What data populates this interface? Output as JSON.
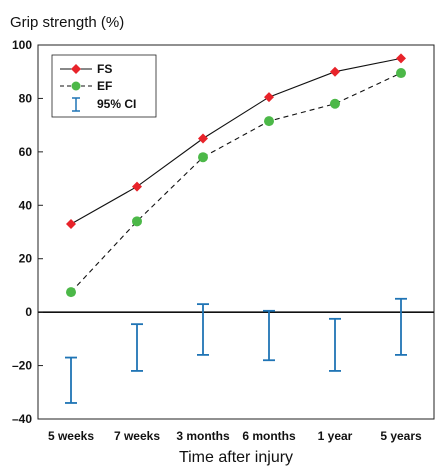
{
  "chart_data": {
    "type": "line",
    "title": "Grip strength (%)",
    "xlabel": "Time after injury",
    "ylabel": "",
    "categories": [
      "5 weeks",
      "7 weeks",
      "3 months",
      "6 months",
      "1 year",
      "5 years"
    ],
    "ylim": [
      -40,
      100
    ],
    "yticks": [
      -40,
      -20,
      0,
      20,
      40,
      60,
      80,
      100
    ],
    "ytick_labels": [
      "–40",
      "–20",
      "0",
      "20",
      "40",
      "60",
      "80",
      "100"
    ],
    "grid": false,
    "legend_position": "top-left",
    "series": [
      {
        "name": "FS",
        "values": [
          33,
          47,
          65,
          80.5,
          90,
          95
        ],
        "color": "#e8232a",
        "marker": "diamond",
        "line": "solid"
      },
      {
        "name": "EF",
        "values": [
          7.5,
          34,
          58,
          71.5,
          78,
          89.5
        ],
        "color": "#4cb848",
        "marker": "circle",
        "line": "dashed"
      }
    ],
    "ci": {
      "name": "95% CI",
      "color": "#1f74b5",
      "lower": [
        -34,
        -22,
        -16,
        -18,
        -22,
        -16
      ],
      "upper": [
        -17,
        -4.5,
        3,
        0.5,
        -2.5,
        5
      ]
    }
  }
}
